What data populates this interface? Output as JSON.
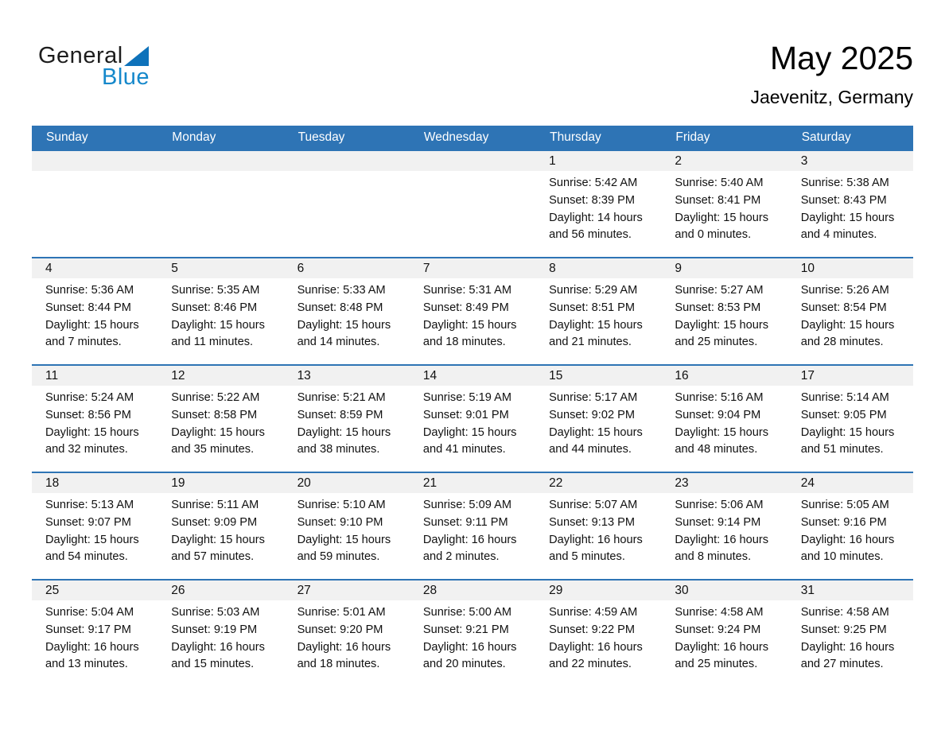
{
  "logo": {
    "part1": "General",
    "part2": "Blue"
  },
  "header": {
    "title": "May 2025",
    "location": "Jaevenitz, Germany"
  },
  "colors": {
    "header_blue": "#2E74B5",
    "row_separator_blue": "#2E74B5",
    "day_strip_gray": "#F1F1F1",
    "logo_text_blue": "#1588CB",
    "logo_triangle_blue": "#0E72BA"
  },
  "weekdays": [
    "Sunday",
    "Monday",
    "Tuesday",
    "Wednesday",
    "Thursday",
    "Friday",
    "Saturday"
  ],
  "labels": {
    "sunrise": "Sunrise:",
    "sunset": "Sunset:",
    "daylight": "Daylight:",
    "hours": "hours",
    "and": "and",
    "minutes_suffix": "minutes."
  },
  "weeks": [
    [
      null,
      null,
      null,
      null,
      {
        "day": "1",
        "sunrise": "5:42 AM",
        "sunset": "8:39 PM",
        "daylight_hours": "14",
        "daylight_minutes": "56"
      },
      {
        "day": "2",
        "sunrise": "5:40 AM",
        "sunset": "8:41 PM",
        "daylight_hours": "15",
        "daylight_minutes": "0"
      },
      {
        "day": "3",
        "sunrise": "5:38 AM",
        "sunset": "8:43 PM",
        "daylight_hours": "15",
        "daylight_minutes": "4"
      }
    ],
    [
      {
        "day": "4",
        "sunrise": "5:36 AM",
        "sunset": "8:44 PM",
        "daylight_hours": "15",
        "daylight_minutes": "7"
      },
      {
        "day": "5",
        "sunrise": "5:35 AM",
        "sunset": "8:46 PM",
        "daylight_hours": "15",
        "daylight_minutes": "11"
      },
      {
        "day": "6",
        "sunrise": "5:33 AM",
        "sunset": "8:48 PM",
        "daylight_hours": "15",
        "daylight_minutes": "14"
      },
      {
        "day": "7",
        "sunrise": "5:31 AM",
        "sunset": "8:49 PM",
        "daylight_hours": "15",
        "daylight_minutes": "18"
      },
      {
        "day": "8",
        "sunrise": "5:29 AM",
        "sunset": "8:51 PM",
        "daylight_hours": "15",
        "daylight_minutes": "21"
      },
      {
        "day": "9",
        "sunrise": "5:27 AM",
        "sunset": "8:53 PM",
        "daylight_hours": "15",
        "daylight_minutes": "25"
      },
      {
        "day": "10",
        "sunrise": "5:26 AM",
        "sunset": "8:54 PM",
        "daylight_hours": "15",
        "daylight_minutes": "28"
      }
    ],
    [
      {
        "day": "11",
        "sunrise": "5:24 AM",
        "sunset": "8:56 PM",
        "daylight_hours": "15",
        "daylight_minutes": "32"
      },
      {
        "day": "12",
        "sunrise": "5:22 AM",
        "sunset": "8:58 PM",
        "daylight_hours": "15",
        "daylight_minutes": "35"
      },
      {
        "day": "13",
        "sunrise": "5:21 AM",
        "sunset": "8:59 PM",
        "daylight_hours": "15",
        "daylight_minutes": "38"
      },
      {
        "day": "14",
        "sunrise": "5:19 AM",
        "sunset": "9:01 PM",
        "daylight_hours": "15",
        "daylight_minutes": "41"
      },
      {
        "day": "15",
        "sunrise": "5:17 AM",
        "sunset": "9:02 PM",
        "daylight_hours": "15",
        "daylight_minutes": "44"
      },
      {
        "day": "16",
        "sunrise": "5:16 AM",
        "sunset": "9:04 PM",
        "daylight_hours": "15",
        "daylight_minutes": "48"
      },
      {
        "day": "17",
        "sunrise": "5:14 AM",
        "sunset": "9:05 PM",
        "daylight_hours": "15",
        "daylight_minutes": "51"
      }
    ],
    [
      {
        "day": "18",
        "sunrise": "5:13 AM",
        "sunset": "9:07 PM",
        "daylight_hours": "15",
        "daylight_minutes": "54"
      },
      {
        "day": "19",
        "sunrise": "5:11 AM",
        "sunset": "9:09 PM",
        "daylight_hours": "15",
        "daylight_minutes": "57"
      },
      {
        "day": "20",
        "sunrise": "5:10 AM",
        "sunset": "9:10 PM",
        "daylight_hours": "15",
        "daylight_minutes": "59"
      },
      {
        "day": "21",
        "sunrise": "5:09 AM",
        "sunset": "9:11 PM",
        "daylight_hours": "16",
        "daylight_minutes": "2"
      },
      {
        "day": "22",
        "sunrise": "5:07 AM",
        "sunset": "9:13 PM",
        "daylight_hours": "16",
        "daylight_minutes": "5"
      },
      {
        "day": "23",
        "sunrise": "5:06 AM",
        "sunset": "9:14 PM",
        "daylight_hours": "16",
        "daylight_minutes": "8"
      },
      {
        "day": "24",
        "sunrise": "5:05 AM",
        "sunset": "9:16 PM",
        "daylight_hours": "16",
        "daylight_minutes": "10"
      }
    ],
    [
      {
        "day": "25",
        "sunrise": "5:04 AM",
        "sunset": "9:17 PM",
        "daylight_hours": "16",
        "daylight_minutes": "13"
      },
      {
        "day": "26",
        "sunrise": "5:03 AM",
        "sunset": "9:19 PM",
        "daylight_hours": "16",
        "daylight_minutes": "15"
      },
      {
        "day": "27",
        "sunrise": "5:01 AM",
        "sunset": "9:20 PM",
        "daylight_hours": "16",
        "daylight_minutes": "18"
      },
      {
        "day": "28",
        "sunrise": "5:00 AM",
        "sunset": "9:21 PM",
        "daylight_hours": "16",
        "daylight_minutes": "20"
      },
      {
        "day": "29",
        "sunrise": "4:59 AM",
        "sunset": "9:22 PM",
        "daylight_hours": "16",
        "daylight_minutes": "22"
      },
      {
        "day": "30",
        "sunrise": "4:58 AM",
        "sunset": "9:24 PM",
        "daylight_hours": "16",
        "daylight_minutes": "25"
      },
      {
        "day": "31",
        "sunrise": "4:58 AM",
        "sunset": "9:25 PM",
        "daylight_hours": "16",
        "daylight_minutes": "27"
      }
    ]
  ]
}
